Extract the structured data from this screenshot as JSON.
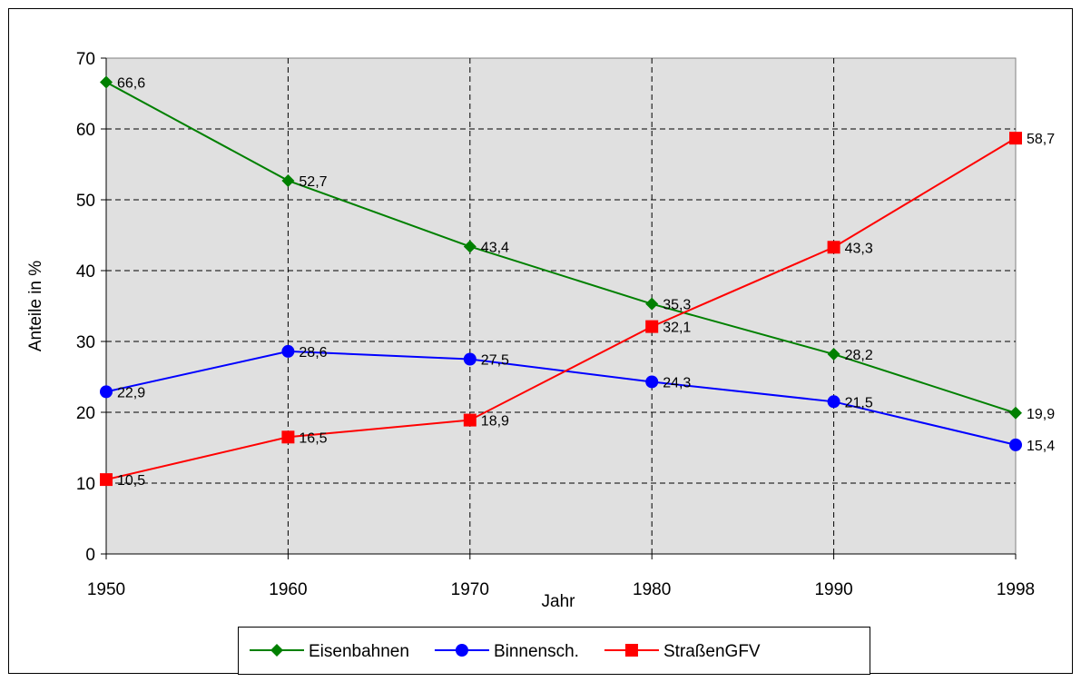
{
  "chart_data": {
    "type": "line",
    "x_label": "Jahr",
    "y_label": "Anteile in %",
    "categories": [
      "1950",
      "1960",
      "1970",
      "1980",
      "1990",
      "1998"
    ],
    "series": [
      {
        "name": "Eisenbahnen",
        "color": "#008000",
        "marker": "diamond",
        "values": [
          66.6,
          52.7,
          43.4,
          35.3,
          28.2,
          19.9
        ],
        "value_labels": [
          "66,6",
          "52,7",
          "43,4",
          "35,3",
          "28,2",
          "19,9"
        ]
      },
      {
        "name": "Binnensch.",
        "color": "#0000ff",
        "marker": "circle",
        "values": [
          22.9,
          28.6,
          27.5,
          24.3,
          21.5,
          15.4
        ],
        "value_labels": [
          "22,9",
          "28,6",
          "27,5",
          "24,3",
          "21,5",
          "15,4"
        ]
      },
      {
        "name": "StraßenGFV",
        "color": "#ff0000",
        "marker": "square",
        "values": [
          10.5,
          16.5,
          18.9,
          32.1,
          43.3,
          58.7
        ],
        "value_labels": [
          "10,5",
          "16,5",
          "18,9",
          "32,1",
          "43,3",
          "58,7"
        ]
      }
    ],
    "ylim": [
      0,
      70
    ],
    "yticks": [
      0,
      10,
      20,
      30,
      40,
      50,
      60,
      70
    ],
    "grid": true,
    "legend": "bottom"
  }
}
